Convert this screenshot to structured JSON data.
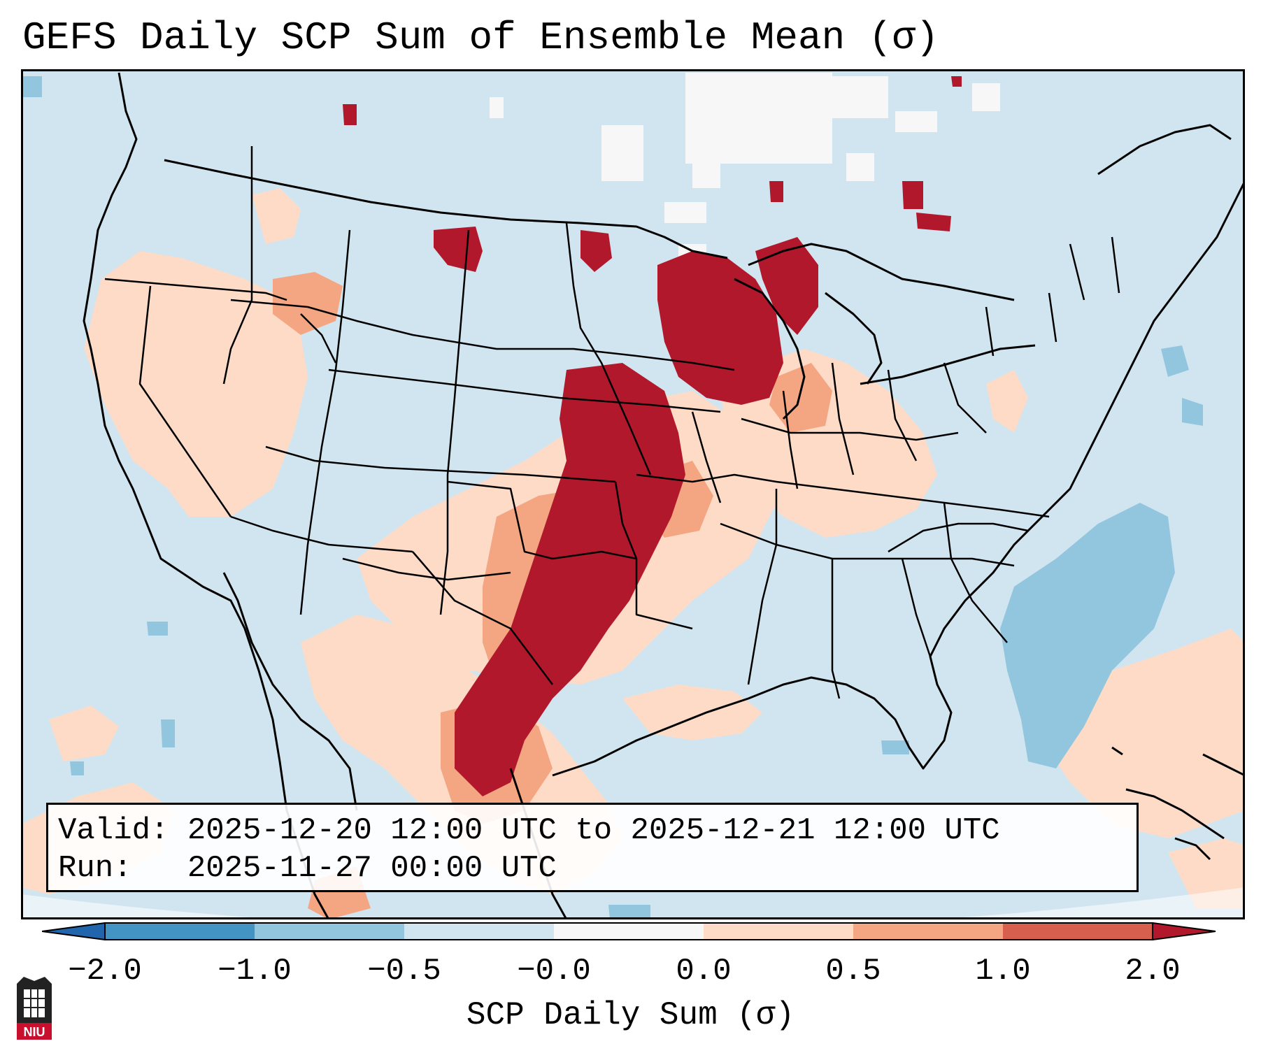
{
  "title": "GEFS Daily SCP Sum of Ensemble Mean (σ)",
  "info": {
    "valid_label": "Valid:",
    "valid_value": "2025-12-20 12:00 UTC to 2025-12-21 12:00 UTC",
    "run_label": "Run:",
    "run_value": "2025-11-27 00:00 UTC"
  },
  "colorbar": {
    "label": "SCP Daily Sum (σ)",
    "ticks": [
      "−2.0",
      "−1.0",
      "−0.5",
      "−0.0",
      "0.0",
      "0.5",
      "1.0",
      "2.0"
    ],
    "colors": [
      "#4393c3",
      "#92c5de",
      "#d1e5f0",
      "#f7f7f7",
      "#fddbc7",
      "#f4a582",
      "#d6604d"
    ],
    "under_color": "#2166ac",
    "over_color": "#b2182b"
  },
  "map_colors": {
    "background": "#d1e5f0",
    "neutral": "#f7f7f7",
    "light_red": "#fddbc7",
    "mid_red": "#f4a582",
    "strong_red": "#b2182b",
    "light_blue": "#92c5de"
  },
  "logo": {
    "icon": "niu-logo-icon",
    "text": "NIU",
    "color": "#c8102e"
  }
}
